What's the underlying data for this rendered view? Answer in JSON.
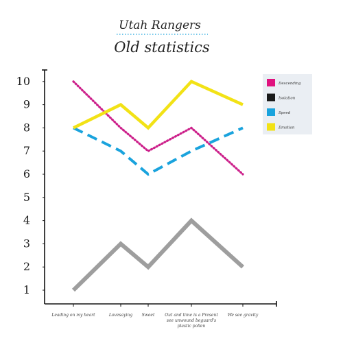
{
  "chart_data": {
    "type": "line",
    "title": "Utah Rangers",
    "subtitle": "Old statistics",
    "xlabel": "",
    "ylabel": "",
    "categories": [
      [
        "Leading on my heart"
      ],
      [
        "Lovesaying"
      ],
      [
        "Sweet"
      ],
      [
        "Out and time is a Present",
        "see unwound beguard's",
        "plastic pollen"
      ],
      [
        "We see gravity"
      ]
    ],
    "ylim": [
      0,
      10
    ],
    "yticks": [
      1,
      2,
      3,
      4,
      5,
      6,
      7,
      8,
      9,
      10
    ],
    "grid": false,
    "legend_position": "top-right",
    "series": [
      {
        "name": "Descending",
        "color": "#cc1f8a",
        "style": "dotted",
        "values": [
          10,
          8,
          7,
          8,
          6
        ]
      },
      {
        "name": "Isolation",
        "color": "#9e9e9e",
        "style": "solid",
        "values": [
          1,
          3,
          2,
          4,
          2
        ]
      },
      {
        "name": "Speed",
        "color": "#1aa3dd",
        "style": "dashed",
        "values": [
          8,
          7,
          6,
          7,
          8
        ]
      },
      {
        "name": "Emotion",
        "color": "#f2e216",
        "style": "solid",
        "values": [
          8,
          9,
          8,
          10,
          9
        ]
      }
    ],
    "legend_swatches": [
      "#e0127e",
      "#1a1a1a",
      "#1aa3dd",
      "#f2e216"
    ]
  }
}
